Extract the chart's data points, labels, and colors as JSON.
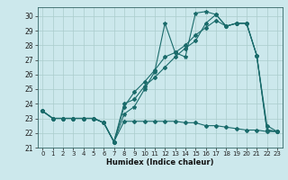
{
  "xlabel": "Humidex (Indice chaleur)",
  "bg_color": "#cce8ec",
  "grid_color": "#aacccc",
  "line_color": "#1a6b6b",
  "xlim": [
    -0.5,
    23.5
  ],
  "ylim": [
    21,
    30.6
  ],
  "yticks": [
    21,
    22,
    23,
    24,
    25,
    26,
    27,
    28,
    29,
    30
  ],
  "xticks": [
    0,
    1,
    2,
    3,
    4,
    5,
    6,
    7,
    8,
    9,
    10,
    11,
    12,
    13,
    14,
    15,
    16,
    17,
    18,
    19,
    20,
    21,
    22,
    23
  ],
  "s1_x": [
    0,
    1,
    2,
    3,
    4,
    5,
    6,
    7,
    8,
    9,
    10,
    11,
    12,
    13,
    14,
    15,
    16,
    17,
    18,
    19,
    20,
    21,
    22,
    23
  ],
  "s1_y": [
    23.5,
    23.0,
    23.0,
    23.0,
    23.0,
    23.0,
    22.7,
    21.4,
    23.3,
    23.8,
    25.0,
    26.2,
    29.5,
    27.5,
    27.2,
    30.2,
    30.3,
    30.1,
    29.3,
    29.5,
    29.5,
    27.3,
    22.2,
    22.1
  ],
  "s2_x": [
    0,
    1,
    2,
    3,
    4,
    5,
    6,
    7,
    8,
    9,
    10,
    11,
    12,
    13,
    14,
    15,
    16,
    17,
    18,
    19,
    20,
    21,
    22,
    23
  ],
  "s2_y": [
    23.5,
    23.0,
    23.0,
    23.0,
    23.0,
    23.0,
    22.7,
    21.4,
    23.8,
    24.8,
    25.5,
    26.3,
    27.2,
    27.5,
    28.0,
    28.7,
    29.2,
    29.7,
    29.3,
    29.5,
    29.5,
    27.3,
    22.2,
    22.1
  ],
  "s3_x": [
    0,
    1,
    2,
    3,
    4,
    5,
    6,
    7,
    8,
    9,
    10,
    11,
    12,
    13,
    14,
    15,
    16,
    17,
    18,
    19,
    20,
    21,
    22,
    23
  ],
  "s3_y": [
    23.5,
    23.0,
    23.0,
    23.0,
    23.0,
    23.0,
    22.7,
    21.4,
    24.0,
    24.3,
    25.2,
    25.8,
    26.5,
    27.2,
    27.8,
    28.3,
    29.5,
    30.1,
    29.3,
    29.5,
    29.5,
    27.3,
    22.5,
    22.1
  ],
  "s4_x": [
    0,
    1,
    2,
    3,
    4,
    5,
    6,
    7,
    8,
    9,
    10,
    11,
    12,
    13,
    14,
    15,
    16,
    17,
    18,
    19,
    20,
    21,
    22,
    23
  ],
  "s4_y": [
    23.5,
    23.0,
    23.0,
    23.0,
    23.0,
    23.0,
    22.7,
    21.4,
    22.8,
    22.8,
    22.8,
    22.8,
    22.8,
    22.8,
    22.7,
    22.7,
    22.5,
    22.5,
    22.4,
    22.3,
    22.2,
    22.2,
    22.1,
    22.1
  ]
}
